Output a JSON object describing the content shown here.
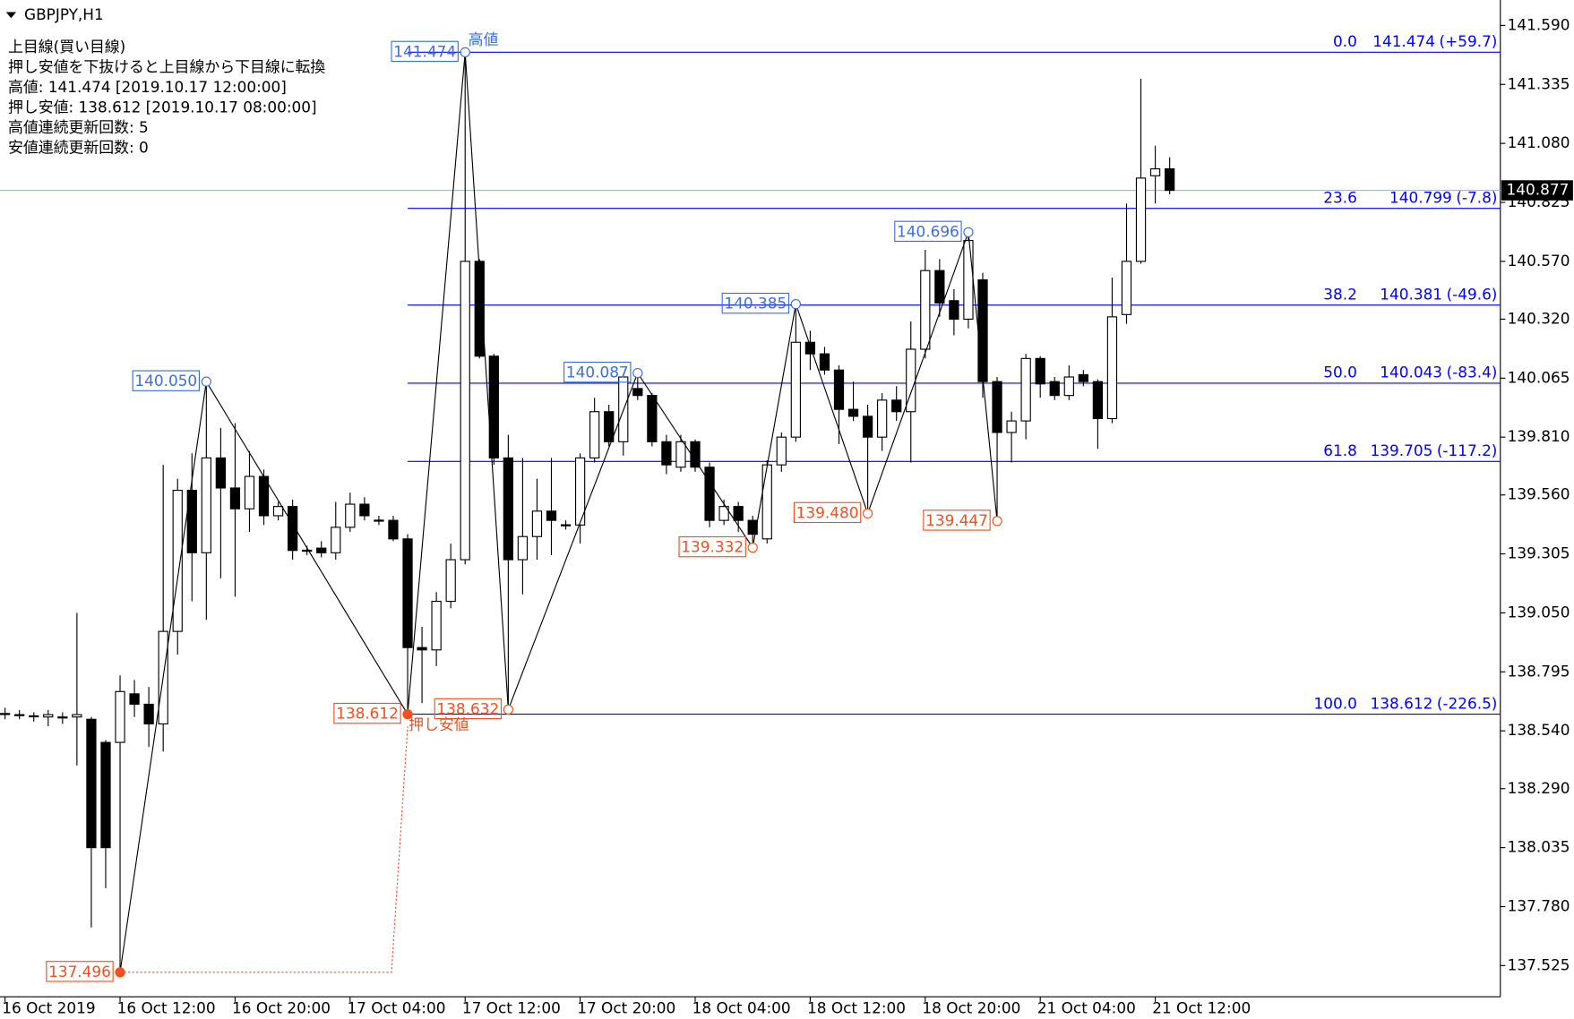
{
  "symbol": "GBPJPY,H1",
  "info_lines": [
    "上目線(買い目線)",
    "押し安値を下抜けると上目線から下目線に転換",
    "高値: 141.474 [2019.10.17 12:00:00]",
    "押し安値: 138.612 [2019.10.17 08:00:00]",
    "高値連続更新回数: 5",
    "安値連続更新回数: 0"
  ],
  "chart_data": {
    "type": "candlestick",
    "categories": [
      "16 Oct 2019",
      null,
      null,
      null,
      null,
      null,
      null,
      null,
      "16 Oct 12:00",
      null,
      null,
      null,
      null,
      null,
      null,
      null,
      "16 Oct 20:00",
      null,
      null,
      null,
      null,
      null,
      null,
      null,
      "17 Oct 04:00",
      null,
      null,
      null,
      null,
      null,
      null,
      null,
      "17 Oct 12:00",
      null,
      null,
      null,
      null,
      null,
      null,
      null,
      "17 Oct 20:00",
      null,
      null,
      null,
      null,
      null,
      null,
      null,
      "18 Oct 04:00",
      null,
      null,
      null,
      null,
      null,
      null,
      null,
      "18 Oct 12:00",
      null,
      null,
      null,
      null,
      null,
      null,
      null,
      "18 Oct 20:00",
      null,
      null,
      null,
      null,
      null,
      null,
      null,
      "21 Oct 04:00",
      null,
      null,
      null,
      null,
      null,
      null,
      null,
      "21 Oct 12:00",
      null
    ],
    "open": [
      138.615,
      138.61,
      138.605,
      138.6,
      138.6,
      138.6,
      138.59,
      138.49,
      138.49,
      138.7,
      138.655,
      138.57,
      138.97,
      139.58,
      139.31,
      139.72,
      139.59,
      139.5,
      139.64,
      139.47,
      139.51,
      139.32,
      139.33,
      139.31,
      139.42,
      139.52,
      139.45,
      139.45,
      139.37,
      138.9,
      138.89,
      139.1,
      139.28,
      140.57,
      140.16,
      139.72,
      139.28,
      139.38,
      139.49,
      139.43,
      139.43,
      139.72,
      139.92,
      139.79,
      140.02,
      139.99,
      139.79,
      139.68,
      139.79,
      139.68,
      139.45,
      139.51,
      139.45,
      139.37,
      139.69,
      139.81,
      140.22,
      140.17,
      140.1,
      139.93,
      139.9,
      139.81,
      139.97,
      139.92,
      140.19,
      140.53,
      140.4,
      140.32,
      140.49,
      140.05,
      139.83,
      139.88,
      140.15,
      140.05,
      139.99,
      140.08,
      140.05,
      139.89,
      140.34,
      140.57,
      140.94,
      140.97
    ],
    "high": [
      138.64,
      138.63,
      138.62,
      138.63,
      138.62,
      139.05,
      138.6,
      138.5,
      138.78,
      138.76,
      138.73,
      139.69,
      139.63,
      139.74,
      140.05,
      139.85,
      139.87,
      139.75,
      139.67,
      139.53,
      139.54,
      139.34,
      139.36,
      139.53,
      139.57,
      139.55,
      139.47,
      139.47,
      139.39,
      138.99,
      139.14,
      139.35,
      141.474,
      140.58,
      140.17,
      139.82,
      139.72,
      139.63,
      139.72,
      139.45,
      139.74,
      139.98,
      139.95,
      140.08,
      140.087,
      140,
      139.82,
      139.82,
      139.8,
      139.7,
      139.54,
      139.53,
      139.47,
      139.71,
      139.83,
      140.385,
      140.27,
      140.2,
      140.12,
      140.05,
      139.95,
      140,
      140.03,
      140.31,
      140.62,
      140.58,
      140.45,
      140.696,
      140.52,
      140.07,
      139.92,
      140.17,
      140.16,
      140.07,
      140.12,
      140.1,
      140.06,
      140.5,
      140.82,
      141.36,
      141.07,
      141.02
    ],
    "low": [
      138.59,
      138.59,
      138.58,
      138.56,
      138.57,
      138.39,
      137.69,
      137.86,
      137.496,
      138.6,
      138.47,
      138.45,
      138.87,
      139.1,
      139.02,
      139.2,
      139.12,
      139.4,
      139.43,
      139.45,
      139.28,
      139.3,
      139.29,
      139.28,
      139.4,
      139.45,
      139.43,
      139.36,
      138.612,
      138.66,
      138.82,
      139.07,
      139.26,
      140.15,
      139.69,
      138.632,
      139.13,
      139.28,
      139.3,
      139.41,
      139.35,
      139.7,
      139.77,
      139.73,
      139.97,
      139.77,
      139.65,
      139.66,
      139.66,
      139.42,
      139.43,
      139.4,
      139.332,
      139.35,
      139.66,
      139.79,
      140.1,
      140.08,
      139.78,
      139.88,
      139.48,
      139.75,
      139.88,
      139.7,
      140.15,
      140.33,
      140.25,
      140.28,
      139.98,
      139.447,
      139.7,
      139.8,
      139.98,
      139.97,
      139.97,
      140.03,
      139.76,
      139.87,
      140.3,
      140.56,
      140.82,
      140.86
    ],
    "close": [
      138.615,
      138.61,
      138.605,
      138.61,
      138.6,
      138.61,
      138.035,
      138.035,
      138.71,
      138.655,
      138.57,
      138.97,
      139.58,
      139.31,
      139.72,
      139.59,
      139.5,
      139.64,
      139.47,
      139.51,
      139.32,
      139.321,
      139.31,
      139.42,
      139.52,
      139.47,
      139.451,
      139.37,
      138.9,
      138.89,
      139.1,
      139.28,
      140.57,
      140.16,
      139.72,
      139.28,
      139.38,
      139.49,
      139.45,
      139.431,
      139.72,
      139.92,
      139.79,
      140.07,
      139.99,
      139.79,
      139.69,
      139.79,
      139.68,
      139.45,
      139.51,
      139.45,
      139.39,
      139.69,
      139.81,
      140.22,
      140.17,
      140.1,
      139.93,
      139.9,
      139.81,
      139.97,
      139.92,
      140.19,
      140.53,
      140.39,
      140.32,
      140.66,
      140.05,
      139.83,
      139.88,
      140.15,
      140.04,
      139.99,
      140.07,
      140.05,
      139.89,
      140.33,
      140.57,
      140.93,
      140.97,
      140.877
    ],
    "ylim": [
      137.39,
      141.7
    ],
    "yticks": [
      {
        "value": 141.59,
        "label": "141.590"
      },
      141.335,
      {
        "value": 141.08,
        "label": "141.080"
      },
      140.825,
      {
        "value": 140.57,
        "label": "140.570"
      },
      {
        "value": 140.32,
        "label": "140.320"
      },
      140.065,
      {
        "value": 139.81,
        "label": "139.810"
      },
      {
        "value": 139.56,
        "label": "139.560"
      },
      139.305,
      {
        "value": 139.05,
        "label": "139.050"
      },
      138.795,
      {
        "value": 138.54,
        "label": "138.540"
      },
      {
        "value": 138.29,
        "label": "138.290"
      },
      138.035,
      {
        "value": 137.78,
        "label": "137.780"
      },
      137.525
    ],
    "current_price": 140.877,
    "fib_levels": [
      {
        "level": {
          "value": 0,
          "label": "0.0"
        },
        "price": 141.474,
        "diff": "(+59.7)"
      },
      {
        "level": 23.6,
        "price": 140.799,
        "diff": "(-7.8)"
      },
      {
        "level": 38.2,
        "price": 140.381,
        "diff": "(-49.6)"
      },
      {
        "level": {
          "value": 50,
          "label": "50.0"
        },
        "price": 140.043,
        "diff": "(-83.4)"
      },
      {
        "level": 61.8,
        "price": 139.705,
        "diff": "(-117.2)"
      },
      {
        "level": {
          "value": 100,
          "label": "100.0"
        },
        "price": 138.612,
        "diff": "(-226.5)"
      }
    ],
    "swings": [
      {
        "kind": "low",
        "price": 137.496,
        "label": "137.496"
      },
      {
        "kind": "high",
        "price": 140.05,
        "label": "140.050"
      },
      {
        "kind": "low",
        "price": 138.612,
        "label": "138.612"
      },
      {
        "kind": "high",
        "price": 141.474,
        "label": "141.474"
      },
      {
        "kind": "low",
        "price": 138.632,
        "label": "138.632"
      },
      {
        "kind": "high",
        "price": 140.087,
        "label": "140.087"
      },
      {
        "kind": "low",
        "price": 139.332,
        "label": "139.332"
      },
      {
        "kind": "high",
        "price": 140.385,
        "label": "140.385"
      },
      {
        "kind": "low",
        "price": 139.48,
        "label": "139.480"
      },
      {
        "kind": "high",
        "price": 140.696,
        "label": "140.696"
      },
      {
        "kind": "low",
        "price": 139.447,
        "label": "139.447"
      }
    ],
    "annotations": {
      "high": "高値",
      "support": "押し安値"
    },
    "colors": {
      "fib": "#0000ff",
      "high": "#3a6fd8",
      "low": "#f0501e",
      "current": "#a8b8c8"
    }
  }
}
